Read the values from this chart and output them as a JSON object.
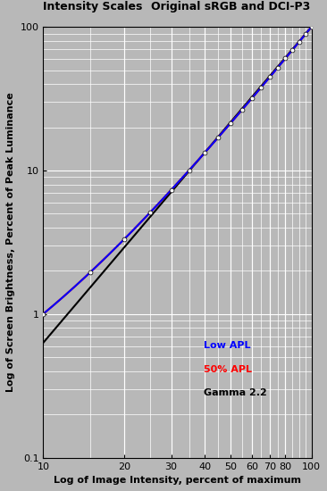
{
  "title1": "Intensity Scales",
  "title2": "Original sRGB and DCI-P3",
  "xlabel": "Log of Image Intensity, percent of maximum",
  "ylabel": "Log of Screen Brightness, Percent of Peak Luminance",
  "xlim": [
    10,
    100
  ],
  "ylim": [
    0.1,
    100
  ],
  "background_color": "#b8b8b8",
  "grid_color": "#ffffff",
  "legend_labels": [
    "Low APL",
    "50% APL",
    "Gamma 2.2"
  ],
  "legend_colors": [
    "#0000ff",
    "#ff0000",
    "#000000"
  ],
  "marker_color": "#ffffff",
  "marker_edge_color": "#000000",
  "line_width": 1.5,
  "marker_size": 3.5,
  "x_data_points": [
    10,
    15,
    20,
    25,
    30,
    35,
    40,
    45,
    50,
    55,
    60,
    65,
    70,
    75,
    80,
    85,
    90,
    95,
    100
  ],
  "font_size_title": 9,
  "font_size_label": 8,
  "font_size_legend": 8
}
